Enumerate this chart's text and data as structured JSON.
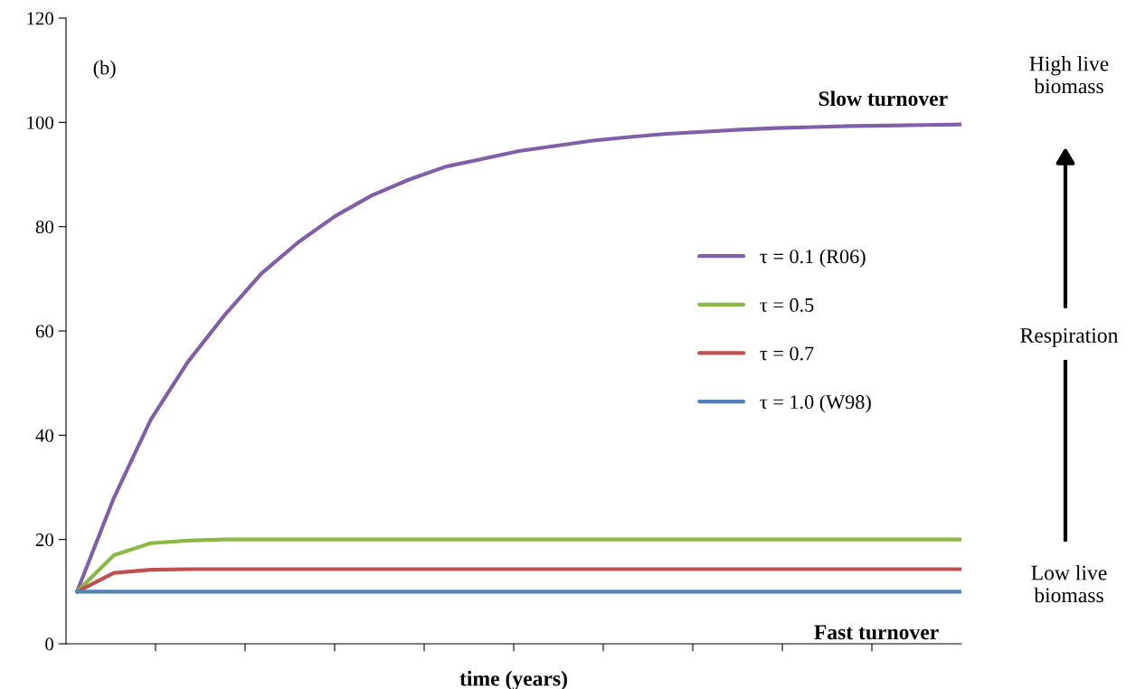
{
  "chart_data": {
    "type": "line",
    "xlabel": "time (years)",
    "categories": [
      null,
      null,
      null,
      null,
      null,
      null,
      null,
      null,
      null,
      null,
      null,
      null,
      null,
      null,
      null,
      null,
      null,
      null,
      null,
      null,
      null,
      null,
      null,
      null,
      null
    ],
    "ylim": [
      0,
      120
    ],
    "yticks": [
      0,
      20,
      40,
      60,
      80,
      100,
      120
    ],
    "grid": false,
    "legend": "right",
    "marker": "none",
    "line_style": "solid",
    "series": [
      {
        "name": "τ = 0.1 (R06)",
        "color": "#7f60a8",
        "values": [
          10,
          28,
          43,
          54,
          63,
          71,
          77,
          82,
          86,
          89,
          91.5,
          93,
          94.5,
          95.5,
          96.5,
          97.2,
          97.8,
          98.2,
          98.6,
          98.9,
          99.1,
          99.3,
          99.4,
          99.5,
          99.6
        ]
      },
      {
        "name": "τ = 0.5",
        "color": "#8cb848",
        "values": [
          10,
          17,
          19.3,
          19.8,
          20,
          20,
          20,
          20,
          20,
          20,
          20,
          20,
          20,
          20,
          20,
          20,
          20,
          20,
          20,
          20,
          20,
          20,
          20,
          20,
          20
        ]
      },
      {
        "name": "τ = 0.7",
        "color": "#c0504d",
        "values": [
          10,
          13.6,
          14.2,
          14.3,
          14.3,
          14.3,
          14.3,
          14.3,
          14.3,
          14.3,
          14.3,
          14.3,
          14.3,
          14.3,
          14.3,
          14.3,
          14.3,
          14.3,
          14.3,
          14.3,
          14.3,
          14.3,
          14.3,
          14.3,
          14.3
        ]
      },
      {
        "name": "τ = 1.0 (W98)",
        "color": "#4f81bd",
        "values": [
          10,
          10,
          10,
          10,
          10,
          10,
          10,
          10,
          10,
          10,
          10,
          10,
          10,
          10,
          10,
          10,
          10,
          10,
          10,
          10,
          10,
          10,
          10,
          10,
          10
        ]
      }
    ],
    "annotations": [
      "(b)",
      "Slow turnover",
      "Fast turnover",
      "High live\nbiomass",
      "Respiration",
      "Low live\nbiomass"
    ]
  }
}
